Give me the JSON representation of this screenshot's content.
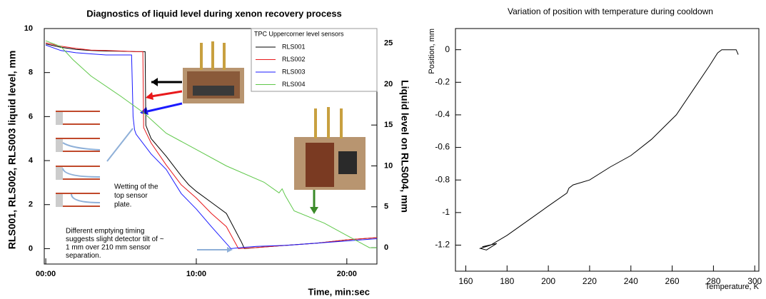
{
  "chart_data": [
    {
      "type": "line",
      "title": "Diagnostics of liquid level during xenon recovery process",
      "ylabel": "RLS001, RLS002, RLS003 liquid level, mm",
      "y2label": "Liquid level on RLS004, mm",
      "xlabel": "Time, min:sec",
      "legend_title": "TPC Uppercorner level sensors",
      "legend": "upper-right",
      "xlim": [
        -0.1,
        22
      ],
      "ylim": [
        -0.7,
        10
      ],
      "y2lim": [
        -2,
        26.8
      ],
      "xticks": [
        {
          "value": 0,
          "label": "00:00"
        },
        {
          "value": 10,
          "label": "10:00"
        },
        {
          "value": 20,
          "label": "20:00"
        }
      ],
      "yticks": [
        0,
        2,
        4,
        6,
        8,
        10
      ],
      "y2ticks": [
        0,
        5,
        10,
        15,
        20,
        25
      ],
      "annotations": [
        [
          "Wetting of the",
          "top sensor",
          "plate."
        ],
        [
          "Different emptying timing",
          "suggests slight detector tilt of ~",
          "1 mm over 210 mm sensor",
          "separation."
        ]
      ],
      "series": [
        {
          "name": "RLS001",
          "color": "#000000",
          "x": [
            0,
            1,
            2,
            3,
            4,
            5,
            6,
            6.6,
            6.65,
            7,
            8,
            9,
            9.5,
            10,
            11,
            12,
            13,
            13.2,
            14,
            15,
            16,
            18,
            20,
            22
          ],
          "values": [
            9.3,
            9.15,
            9.05,
            9.0,
            8.98,
            8.97,
            8.95,
            8.95,
            5.6,
            5.0,
            4.2,
            3.3,
            2.9,
            2.6,
            2.1,
            1.6,
            0.3,
            0.0,
            0.05,
            0.1,
            0.15,
            0.25,
            0.4,
            0.5
          ]
        },
        {
          "name": "RLS002",
          "color": "#e8191c",
          "x": [
            0,
            1,
            2,
            3,
            4,
            5,
            6,
            6.45,
            6.5,
            7,
            8,
            9,
            10,
            11,
            12,
            12.8,
            14,
            16,
            18,
            20,
            22
          ],
          "values": [
            9.35,
            9.2,
            9.1,
            9.02,
            9.0,
            8.98,
            8.95,
            8.95,
            5.5,
            4.8,
            3.8,
            2.9,
            2.3,
            1.6,
            1.0,
            0.0,
            0.05,
            0.15,
            0.25,
            0.4,
            0.5
          ]
        },
        {
          "name": "RLS003",
          "color": "#1a1aff",
          "x": [
            0,
            1,
            2,
            3,
            4,
            5,
            5.7,
            5.75,
            5.8,
            5.9,
            6.0,
            7,
            8,
            9,
            10,
            11,
            12.3,
            13,
            14,
            16,
            18,
            20,
            22
          ],
          "values": [
            9.25,
            9.0,
            8.9,
            8.85,
            8.8,
            8.8,
            8.8,
            7.4,
            6.0,
            5.4,
            5.2,
            4.3,
            3.6,
            2.5,
            1.8,
            1.0,
            0.0,
            0.05,
            0.1,
            0.15,
            0.25,
            0.35,
            0.45
          ]
        },
        {
          "name": "RLS004",
          "color": "#5fc84a",
          "axis": "y2",
          "x": [
            0,
            1,
            1.8,
            3,
            5,
            6.5,
            8,
            10,
            12,
            14.5,
            15.5,
            15.7,
            15.9,
            16.5,
            18.5,
            20,
            21.5,
            22
          ],
          "values": [
            25.3,
            24.6,
            23.0,
            21.0,
            18.5,
            16.5,
            14.0,
            12.0,
            10.0,
            8.0,
            6.7,
            7.2,
            6.4,
            4.5,
            3.0,
            1.5,
            0.0,
            0.0
          ]
        }
      ]
    },
    {
      "type": "line",
      "title": "Variation of position with temperature during cooldown",
      "ylabel": "Position, mm",
      "xlabel": "Temperature, K",
      "xlim": [
        155,
        302
      ],
      "ylim": [
        -1.36,
        0.13
      ],
      "xticks": [
        160,
        180,
        200,
        220,
        240,
        260,
        280,
        300
      ],
      "yticks": [
        0,
        -0.2,
        -0.4,
        -0.6,
        -0.8,
        -1,
        -1.2
      ],
      "series": [
        {
          "name": null,
          "color": "#000000",
          "x": [
            292,
            291,
            284,
            282,
            278,
            270,
            262,
            250,
            240,
            230,
            220,
            212,
            210,
            209,
            200,
            190,
            180,
            172,
            167,
            170,
            175,
            168
          ],
          "values": [
            -0.03,
            0.0,
            0.0,
            -0.02,
            -0.1,
            -0.25,
            -0.4,
            -0.55,
            -0.65,
            -0.72,
            -0.8,
            -0.83,
            -0.85,
            -0.88,
            -0.96,
            -1.05,
            -1.14,
            -1.2,
            -1.22,
            -1.23,
            -1.19,
            -1.21
          ]
        }
      ]
    }
  ]
}
